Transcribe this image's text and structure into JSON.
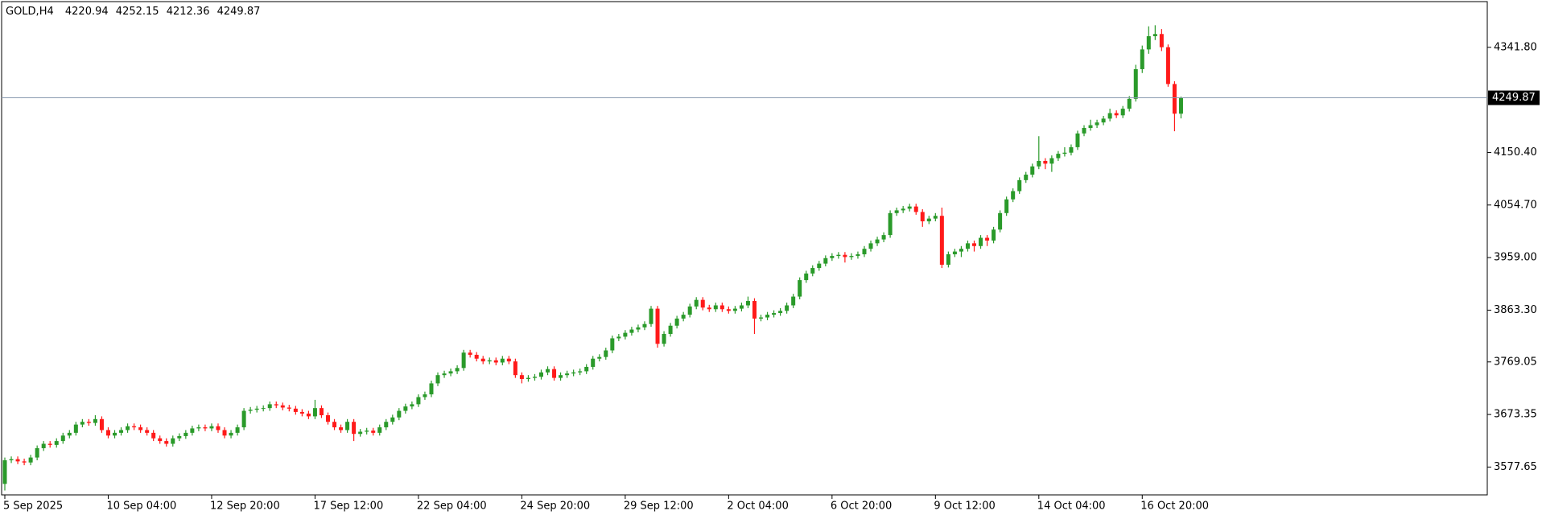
{
  "chart_data": {
    "type": "candlestick",
    "title": "GOLD,H4",
    "categories": [
      "5 Sep 2025",
      null,
      null,
      null,
      null,
      null,
      null,
      null,
      null,
      null,
      null,
      null,
      null,
      null,
      null,
      null,
      "10 Sep 04:00",
      null,
      null,
      null,
      null,
      null,
      null,
      null,
      null,
      null,
      null,
      null,
      null,
      null,
      null,
      null,
      "12 Sep 20:00",
      null,
      null,
      null,
      null,
      null,
      null,
      null,
      null,
      null,
      null,
      null,
      null,
      null,
      null,
      null,
      "17 Sep 12:00",
      null,
      null,
      null,
      null,
      null,
      null,
      null,
      null,
      null,
      null,
      null,
      null,
      null,
      null,
      null,
      "22 Sep 04:00",
      null,
      null,
      null,
      null,
      null,
      null,
      null,
      null,
      null,
      null,
      null,
      null,
      null,
      null,
      null,
      "24 Sep 20:00",
      null,
      null,
      null,
      null,
      null,
      null,
      null,
      null,
      null,
      null,
      null,
      null,
      null,
      null,
      null,
      "29 Sep 12:00",
      null,
      null,
      null,
      null,
      null,
      null,
      null,
      null,
      null,
      null,
      null,
      null,
      null,
      null,
      null,
      "2 Oct 04:00",
      null,
      null,
      null,
      null,
      null,
      null,
      null,
      null,
      null,
      null,
      null,
      null,
      null,
      null,
      null,
      "6 Oct 20:00",
      null,
      null,
      null,
      null,
      null,
      null,
      null,
      null,
      null,
      null,
      null,
      null,
      null,
      null,
      null,
      "9 Oct 12:00",
      null,
      null,
      null,
      null,
      null,
      null,
      null,
      null,
      null,
      null,
      null,
      null,
      null,
      null,
      null,
      "14 Oct 04:00",
      null,
      null,
      null,
      null,
      null,
      null,
      null,
      null,
      null,
      null,
      null,
      null,
      null,
      null,
      null,
      "16 Oct 20:00",
      null,
      null,
      null,
      null,
      null,
      null
    ],
    "open": [
      3547,
      3590,
      3592,
      3588,
      3586,
      3595,
      3612,
      3620,
      3618,
      3625,
      3635,
      3640,
      3655,
      3660,
      3658,
      3665,
      3645,
      3635,
      3640,
      3645,
      3652,
      3650,
      3645,
      3640,
      3630,
      3625,
      3620,
      3630,
      3634,
      3640,
      3648,
      3650,
      3648,
      3652,
      3645,
      3635,
      3640,
      3650,
      3680,
      3682,
      3684,
      3685,
      3692,
      3690,
      3686,
      3684,
      3678,
      3675,
      3670,
      3685,
      3672,
      3660,
      3650,
      3645,
      3660,
      3638,
      3642,
      3644,
      3640,
      3650,
      3660,
      3668,
      3680,
      3688,
      3692,
      3705,
      3710,
      3730,
      3745,
      3748,
      3752,
      3758,
      3786,
      3782,
      3775,
      3770,
      3772,
      3768,
      3775,
      3770,
      3745,
      3738,
      3740,
      3742,
      3750,
      3756,
      3740,
      3745,
      3748,
      3750,
      3752,
      3760,
      3775,
      3778,
      3790,
      3812,
      3815,
      3822,
      3828,
      3832,
      3838,
      3866,
      3802,
      3820,
      3835,
      3848,
      3855,
      3870,
      3882,
      3868,
      3865,
      3872,
      3865,
      3862,
      3866,
      3872,
      3880,
      3848,
      3850,
      3855,
      3858,
      3862,
      3872,
      3888,
      3918,
      3930,
      3940,
      3948,
      3958,
      3962,
      3964,
      3960,
      3962,
      3965,
      3975,
      3985,
      3992,
      4000,
      4040,
      4045,
      4048,
      4052,
      4042,
      4025,
      4030,
      4035,
      3946,
      3965,
      3970,
      3975,
      3985,
      3980,
      3995,
      3990,
      4010,
      4040,
      4065,
      4080,
      4100,
      4110,
      4125,
      4135,
      4130,
      4140,
      4148,
      4150,
      4160,
      4185,
      4195,
      4200,
      4205,
      4212,
      4222,
      4218,
      4230,
      4248,
      4302,
      4338,
      4362,
      4366,
      4342,
      4275,
      4220.94
    ],
    "high": [
      3595,
      3597,
      3597,
      3593,
      3600,
      3617,
      3625,
      3625,
      3630,
      3640,
      3645,
      3660,
      3665,
      3665,
      3672,
      3670,
      3650,
      3645,
      3650,
      3657,
      3657,
      3655,
      3650,
      3645,
      3635,
      3630,
      3635,
      3639,
      3645,
      3653,
      3655,
      3655,
      3657,
      3657,
      3650,
      3645,
      3655,
      3685,
      3687,
      3689,
      3690,
      3697,
      3697,
      3695,
      3691,
      3689,
      3683,
      3680,
      3700,
      3690,
      3677,
      3665,
      3655,
      3665,
      3665,
      3647,
      3649,
      3649,
      3655,
      3665,
      3673,
      3685,
      3693,
      3697,
      3710,
      3715,
      3735,
      3750,
      3753,
      3757,
      3763,
      3791,
      3791,
      3787,
      3780,
      3777,
      3777,
      3780,
      3780,
      3775,
      3750,
      3745,
      3747,
      3755,
      3761,
      3761,
      3750,
      3753,
      3755,
      3757,
      3765,
      3780,
      3783,
      3795,
      3817,
      3820,
      3827,
      3833,
      3837,
      3843,
      3871,
      3871,
      3825,
      3840,
      3853,
      3860,
      3875,
      3887,
      3887,
      3873,
      3877,
      3877,
      3870,
      3871,
      3877,
      3888,
      3885,
      3855,
      3860,
      3863,
      3867,
      3877,
      3893,
      3923,
      3935,
      3945,
      3953,
      3963,
      3967,
      3969,
      3969,
      3967,
      3970,
      3980,
      3990,
      3997,
      4005,
      4045,
      4050,
      4053,
      4057,
      4057,
      4047,
      4035,
      4040,
      4050,
      3970,
      3975,
      3980,
      3990,
      3990,
      4000,
      4000,
      4015,
      4045,
      4070,
      4085,
      4105,
      4115,
      4130,
      4180,
      4140,
      4145,
      4153,
      4160,
      4165,
      4190,
      4200,
      4210,
      4210,
      4217,
      4230,
      4227,
      4235,
      4253,
      4310,
      4345,
      4380,
      4382,
      4375,
      4347,
      4280,
      4252.15
    ],
    "low": [
      3535,
      3585,
      3583,
      3581,
      3581,
      3590,
      3607,
      3613,
      3613,
      3620,
      3630,
      3635,
      3650,
      3653,
      3653,
      3640,
      3630,
      3630,
      3635,
      3640,
      3645,
      3640,
      3635,
      3625,
      3620,
      3615,
      3615,
      3625,
      3629,
      3635,
      3643,
      3643,
      3643,
      3640,
      3630,
      3630,
      3635,
      3645,
      3675,
      3677,
      3679,
      3680,
      3685,
      3681,
      3679,
      3673,
      3670,
      3665,
      3665,
      3667,
      3655,
      3645,
      3640,
      3640,
      3625,
      3633,
      3637,
      3635,
      3635,
      3645,
      3655,
      3663,
      3675,
      3683,
      3687,
      3700,
      3705,
      3725,
      3740,
      3743,
      3747,
      3753,
      3777,
      3770,
      3765,
      3765,
      3763,
      3763,
      3765,
      3740,
      3730,
      3733,
      3735,
      3737,
      3745,
      3735,
      3735,
      3740,
      3743,
      3745,
      3747,
      3755,
      3770,
      3773,
      3785,
      3807,
      3810,
      3817,
      3823,
      3827,
      3833,
      3795,
      3797,
      3815,
      3830,
      3843,
      3850,
      3865,
      3863,
      3860,
      3860,
      3860,
      3857,
      3857,
      3861,
      3867,
      3820,
      3843,
      3845,
      3850,
      3853,
      3857,
      3867,
      3883,
      3913,
      3925,
      3935,
      3943,
      3953,
      3957,
      3950,
      3955,
      3957,
      3960,
      3970,
      3980,
      3987,
      3995,
      4035,
      4040,
      4043,
      4037,
      4015,
      4020,
      4025,
      3940,
      3941,
      3960,
      3960,
      3970,
      3970,
      3975,
      3980,
      3985,
      4005,
      4035,
      4060,
      4075,
      4095,
      4105,
      4120,
      4120,
      4115,
      4135,
      4143,
      4145,
      4155,
      4180,
      4190,
      4195,
      4200,
      4207,
      4213,
      4213,
      4225,
      4243,
      4295,
      4330,
      4355,
      4335,
      4270,
      4189,
      4212.36
    ],
    "close": [
      3590,
      3592,
      3588,
      3586,
      3595,
      3612,
      3620,
      3618,
      3625,
      3635,
      3640,
      3655,
      3660,
      3658,
      3665,
      3645,
      3635,
      3640,
      3645,
      3652,
      3650,
      3645,
      3640,
      3630,
      3625,
      3620,
      3630,
      3634,
      3640,
      3648,
      3650,
      3648,
      3652,
      3645,
      3635,
      3640,
      3650,
      3680,
      3682,
      3684,
      3685,
      3692,
      3690,
      3686,
      3684,
      3678,
      3675,
      3670,
      3685,
      3672,
      3660,
      3650,
      3645,
      3660,
      3638,
      3642,
      3644,
      3640,
      3650,
      3660,
      3668,
      3680,
      3688,
      3692,
      3705,
      3710,
      3730,
      3745,
      3748,
      3752,
      3758,
      3786,
      3782,
      3775,
      3770,
      3772,
      3768,
      3775,
      3770,
      3745,
      3738,
      3740,
      3742,
      3750,
      3756,
      3740,
      3745,
      3748,
      3750,
      3752,
      3760,
      3775,
      3778,
      3790,
      3812,
      3815,
      3822,
      3828,
      3832,
      3838,
      3866,
      3802,
      3820,
      3835,
      3848,
      3855,
      3870,
      3882,
      3868,
      3865,
      3872,
      3865,
      3862,
      3866,
      3872,
      3880,
      3848,
      3850,
      3855,
      3858,
      3862,
      3872,
      3888,
      3918,
      3930,
      3940,
      3948,
      3958,
      3962,
      3964,
      3960,
      3962,
      3965,
      3975,
      3985,
      3992,
      4000,
      4040,
      4045,
      4048,
      4052,
      4042,
      4025,
      4030,
      4035,
      3946,
      3965,
      3970,
      3975,
      3985,
      3980,
      3995,
      3990,
      4010,
      4040,
      4065,
      4080,
      4100,
      4110,
      4125,
      4135,
      4130,
      4140,
      4148,
      4150,
      4160,
      4185,
      4195,
      4200,
      4205,
      4212,
      4222,
      4218,
      4230,
      4248,
      4302,
      4338,
      4362,
      4366,
      4342,
      4275,
      4220.94,
      4249.87
    ],
    "up_color": "#2a9a2a",
    "down_color": "#ff1a1a",
    "price_line_color": "#8a9bb0",
    "ylim": [
      3527,
      4425
    ],
    "yticks": [
      3577.65,
      3673.35,
      3769.05,
      {
        "value": 3863.3,
        "label": "3863.30"
      },
      {
        "value": 3959,
        "label": "3959.00"
      },
      {
        "value": 4054.7,
        "label": "4054.70"
      },
      {
        "value": 4150.4,
        "label": "4150.40"
      },
      {
        "value": 4341.8,
        "label": "4341.80"
      }
    ],
    "grid": false
  }
}
